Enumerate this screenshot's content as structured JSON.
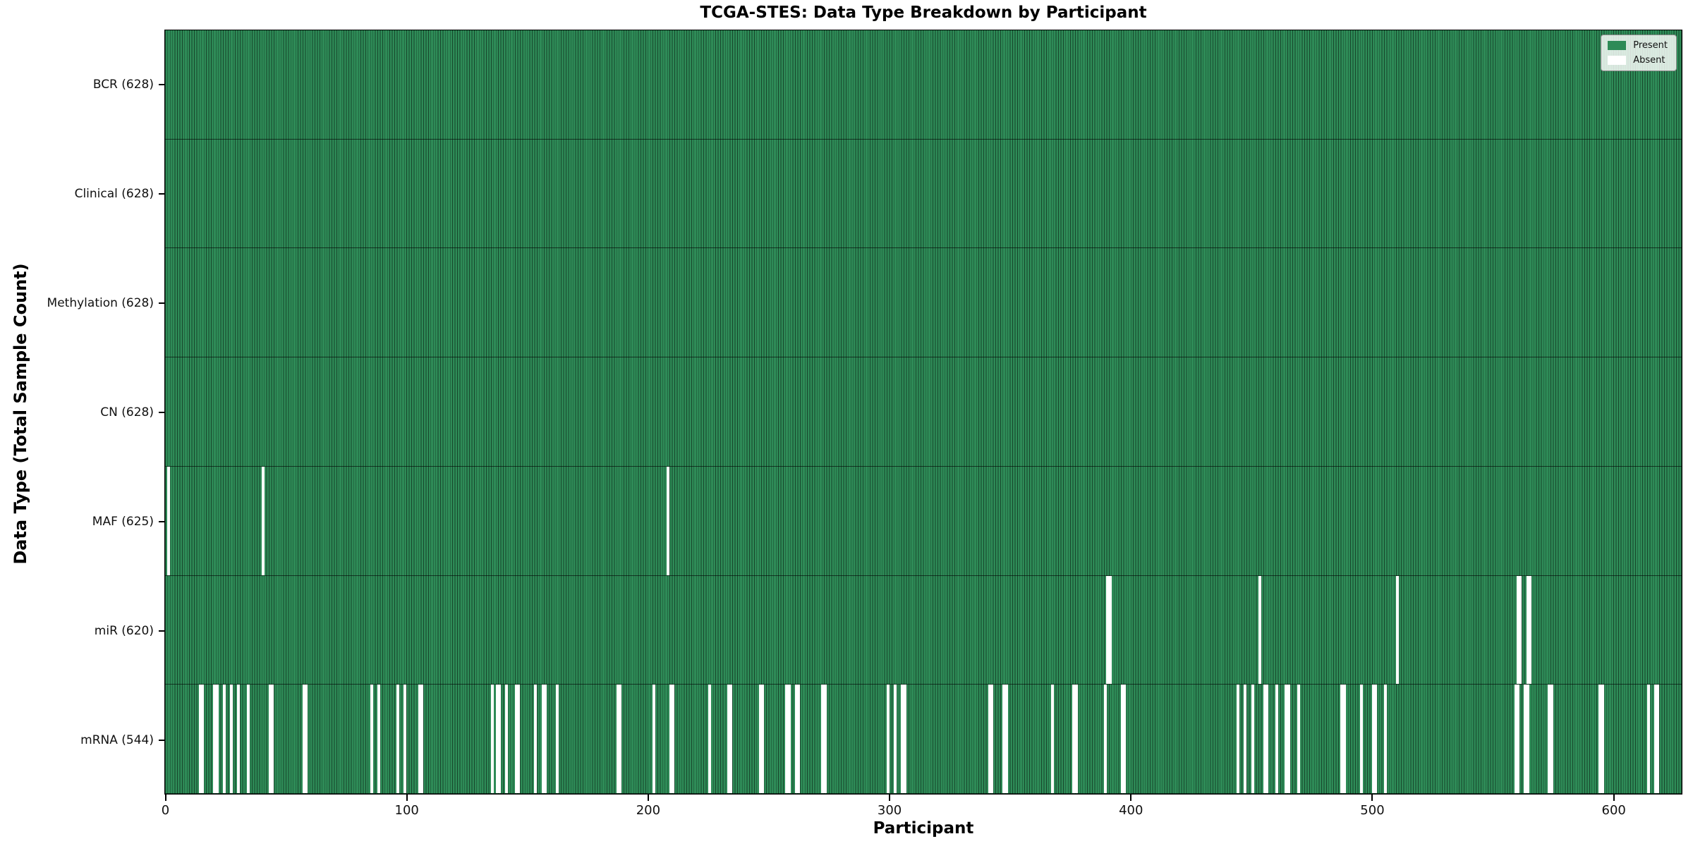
{
  "title": "TCGA-STES: Data Type Breakdown by Participant",
  "chart_data": {
    "type": "heatmap",
    "title": "TCGA-STES: Data Type Breakdown by Participant",
    "xlabel": "Participant",
    "ylabel": "Data Type (Total Sample Count)",
    "x_ticks": [
      0,
      100,
      200,
      300,
      400,
      500,
      600
    ],
    "n_participants": 628,
    "grid": false,
    "legend_position": "upper right",
    "colors": {
      "present": "#2e8b57",
      "absent": "#ffffff",
      "cell_edge": "rgba(0,0,0,0.5)"
    },
    "legend": [
      {
        "label": "Present",
        "color": "#2e8b57"
      },
      {
        "label": "Absent",
        "color": "#ffffff"
      }
    ],
    "rows": [
      {
        "label": "BCR (628)",
        "name": "BCR",
        "present_count": 628,
        "absent": []
      },
      {
        "label": "Clinical (628)",
        "name": "Clinical",
        "present_count": 628,
        "absent": []
      },
      {
        "label": "Methylation (628)",
        "name": "Methylation",
        "present_count": 628,
        "absent": []
      },
      {
        "label": "CN (628)",
        "name": "CN",
        "present_count": 628,
        "absent": []
      },
      {
        "label": "MAF (625)",
        "name": "MAF",
        "present_count": 625,
        "absent": [
          1,
          40,
          208
        ]
      },
      {
        "label": "miR (620)",
        "name": "miR",
        "present_count": 620,
        "absent": [
          390,
          391,
          453,
          510,
          560,
          561,
          564,
          565
        ]
      },
      {
        "label": "mRNA (544)",
        "name": "mRNA",
        "present_count": 544,
        "absent": [
          14,
          15,
          20,
          21,
          24,
          27,
          30,
          34,
          43,
          44,
          57,
          58,
          85,
          88,
          96,
          99,
          105,
          106,
          135,
          137,
          138,
          141,
          145,
          146,
          153,
          156,
          157,
          162,
          187,
          188,
          202,
          209,
          210,
          225,
          233,
          234,
          246,
          247,
          257,
          258,
          261,
          262,
          272,
          273,
          299,
          302,
          305,
          306,
          341,
          342,
          347,
          348,
          367,
          376,
          377,
          389,
          396,
          397,
          444,
          447,
          450,
          455,
          456,
          460,
          464,
          465,
          469,
          487,
          488,
          495,
          500,
          501,
          505,
          559,
          560,
          563,
          564,
          573,
          574,
          594,
          595,
          614,
          617,
          618
        ]
      }
    ]
  }
}
